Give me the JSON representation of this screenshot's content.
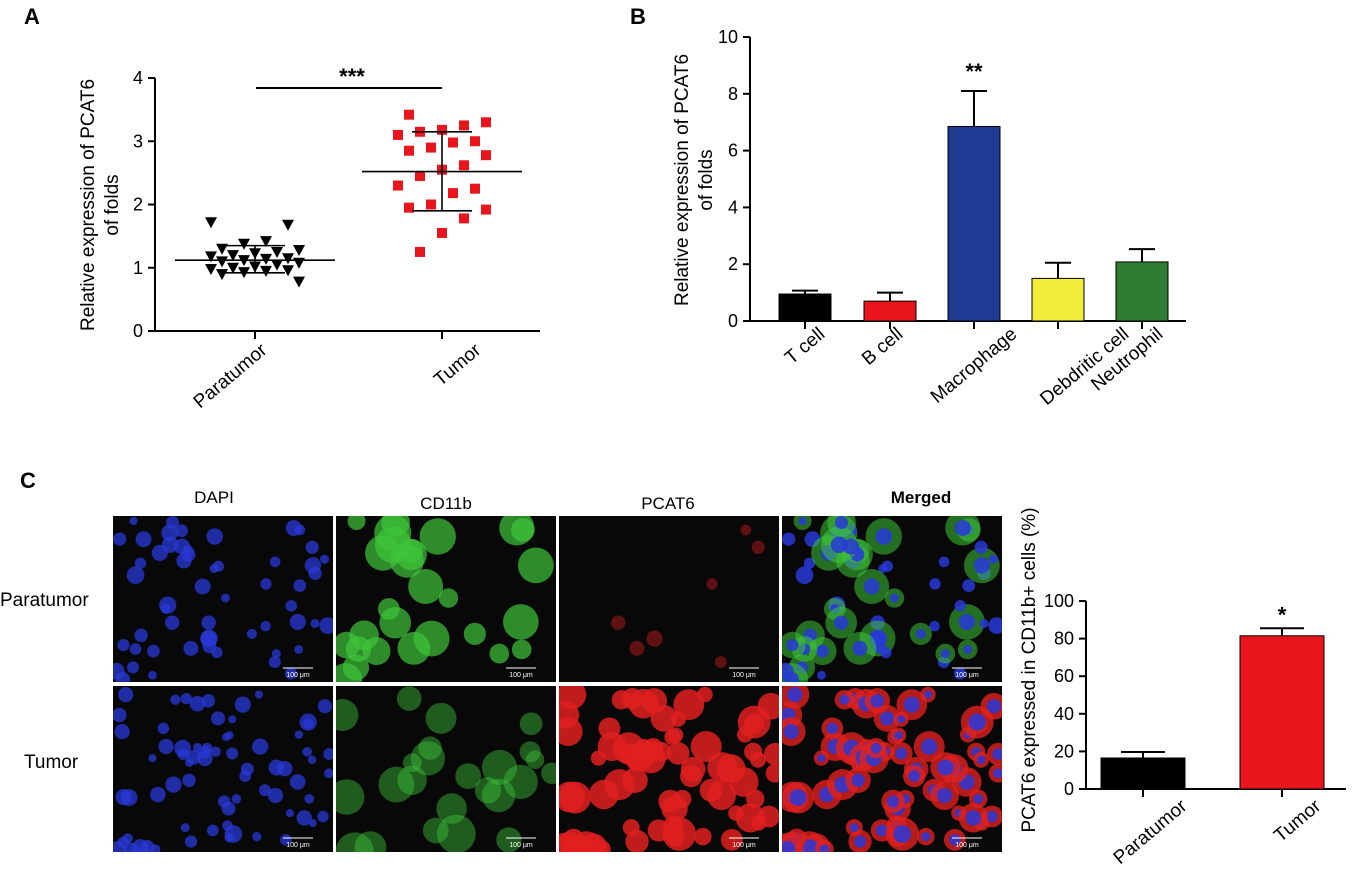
{
  "panel_labels": [
    "A",
    "B",
    "C"
  ],
  "colors": {
    "paratumor_marker": "#000000",
    "tumor_marker": "#e8161c",
    "t_cell": "#000000",
    "b_cell": "#e8161c",
    "macrophage": "#1f3a93",
    "dendritic": "#f1eb3a",
    "neutrophil": "#2e7d32",
    "dapi": "#2838d8",
    "cd11b": "#3ec43a",
    "pcat6": "#e0201e"
  },
  "chart_data": [
    {
      "type": "scatter",
      "panel": "A",
      "ylabel": [
        "Relative expression of PCAT6",
        "of folds"
      ],
      "ylim": [
        0,
        4
      ],
      "yticks": [
        0,
        1,
        2,
        3,
        4
      ],
      "categories": [
        "Paratumor",
        "Tumor"
      ],
      "significance": "***",
      "series": [
        {
          "category": "Paratumor",
          "marker": "triangle-down",
          "points": [
            1.72,
            1.68,
            1.42,
            1.38,
            1.3,
            1.28,
            1.25,
            1.23,
            1.2,
            1.18,
            1.15,
            1.14,
            1.12,
            1.1,
            1.08,
            1.05,
            1.02,
            1.0,
            0.98,
            0.96,
            0.95,
            0.93,
            0.9,
            0.78
          ],
          "mean": 1.12,
          "sd_low": 0.92,
          "sd_high": 1.35
        },
        {
          "category": "Tumor",
          "marker": "square",
          "points": [
            3.42,
            3.3,
            3.25,
            3.18,
            3.15,
            3.1,
            3.0,
            2.98,
            2.9,
            2.85,
            2.78,
            2.62,
            2.55,
            2.45,
            2.3,
            2.25,
            2.18,
            2.0,
            1.95,
            1.92,
            1.78,
            1.55,
            1.25
          ],
          "mean": 2.52,
          "sd_low": 1.9,
          "sd_high": 3.15
        }
      ]
    },
    {
      "type": "bar",
      "panel": "B",
      "ylabel": [
        "Relative expression of PCAT6",
        "of folds"
      ],
      "ylim": [
        0,
        10
      ],
      "yticks": [
        0,
        2,
        4,
        6,
        8,
        10
      ],
      "categories": [
        "T cell",
        "B cell",
        "Macrophage",
        "Debdritic cell",
        "Neutrophil"
      ],
      "values": [
        0.95,
        0.7,
        6.85,
        1.5,
        2.08
      ],
      "errors": [
        0.12,
        0.3,
        1.25,
        0.55,
        0.45
      ],
      "bar_colors": [
        "#000000",
        "#e8161c",
        "#1f3a93",
        "#f1eb3a",
        "#2e7d32"
      ],
      "annotations": [
        {
          "category": "Macrophage",
          "text": "**"
        }
      ]
    },
    {
      "type": "bar",
      "panel": "C",
      "ylabel": "PCAT6 expressed in CD11b+ cells (%)",
      "ylim": [
        0,
        100
      ],
      "yticks": [
        0,
        20,
        40,
        60,
        80,
        100
      ],
      "categories": [
        "Paratumor",
        "Tumor"
      ],
      "values": [
        16.5,
        81.5
      ],
      "errors": [
        3.2,
        4.0
      ],
      "bar_colors": [
        "#000000",
        "#e8161c"
      ],
      "annotations": [
        {
          "category": "Tumor",
          "text": "*"
        }
      ]
    }
  ],
  "micrographs": {
    "channels": [
      "DAPI",
      "CD11b",
      "PCAT6",
      "Merged"
    ],
    "rows": [
      "Paratumor",
      "Tumor"
    ],
    "scale_bar": "100 μm"
  }
}
